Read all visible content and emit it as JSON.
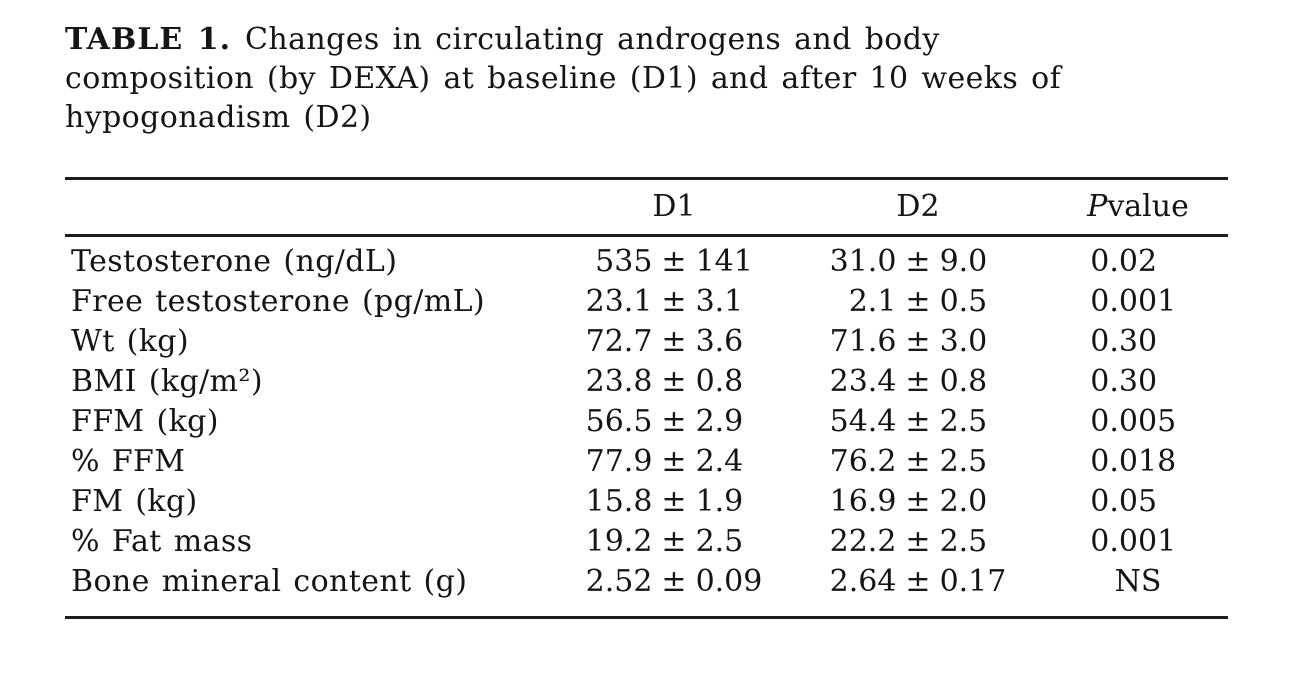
{
  "caption": {
    "label": "TABLE 1.",
    "lines": [
      "Changes in circulating androgens and body",
      "composition (by DEXA) at baseline (D1) and after 10 weeks of",
      "hypogonadism (D2)"
    ]
  },
  "table": {
    "plus_minus": "±",
    "columns": {
      "row_header": "",
      "d1": "D1",
      "d2": "D2",
      "p_italic": "P",
      "p_rest": " value"
    },
    "rows": [
      {
        "label": "Testosterone (ng/dL)",
        "d1_mean": "535",
        "d1_sd": "141",
        "d2_mean": "31.0",
        "d2_sd": "9.0",
        "p": "0.02"
      },
      {
        "label": "Free testosterone (pg/mL)",
        "d1_mean": "23.1",
        "d1_sd": "3.1",
        "d2_mean": "2.1",
        "d2_sd": "0.5",
        "p": "0.001"
      },
      {
        "label": "Wt (kg)",
        "d1_mean": "72.7",
        "d1_sd": "3.6",
        "d2_mean": "71.6",
        "d2_sd": "3.0",
        "p": "0.30"
      },
      {
        "label": "BMI (kg/m²)",
        "d1_mean": "23.8",
        "d1_sd": "0.8",
        "d2_mean": "23.4",
        "d2_sd": "0.8",
        "p": "0.30"
      },
      {
        "label": "FFM (kg)",
        "d1_mean": "56.5",
        "d1_sd": "2.9",
        "d2_mean": "54.4",
        "d2_sd": "2.5",
        "p": "0.005"
      },
      {
        "label": "% FFM",
        "d1_mean": "77.9",
        "d1_sd": "2.4",
        "d2_mean": "76.2",
        "d2_sd": "2.5",
        "p": "0.018"
      },
      {
        "label": "FM (kg)",
        "d1_mean": "15.8",
        "d1_sd": "1.9",
        "d2_mean": "16.9",
        "d2_sd": "2.0",
        "p": "0.05"
      },
      {
        "label": "% Fat mass",
        "d1_mean": "19.2",
        "d1_sd": "2.5",
        "d2_mean": "22.2",
        "d2_sd": "2.5",
        "p": "0.001"
      },
      {
        "label": "Bone mineral content (g)",
        "d1_mean": "2.52",
        "d1_sd": "0.09",
        "d2_mean": "2.64",
        "d2_sd": "0.17",
        "p": "NS"
      }
    ]
  }
}
